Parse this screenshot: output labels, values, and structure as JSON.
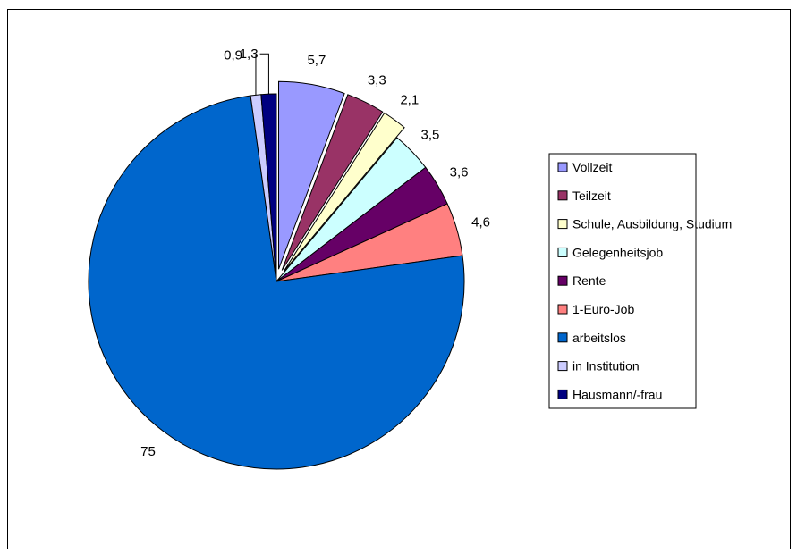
{
  "chart_data": {
    "type": "pie",
    "categories": [
      "Vollzeit",
      "Teilzeit",
      "Schule, Ausbildung, Studium",
      "Gelegenheitsjob",
      "Rente",
      "1-Euro-Job",
      "arbeitslos",
      "in Institution",
      "Hausmann/-frau"
    ],
    "values": [
      5.7,
      3.3,
      2.1,
      3.5,
      3.6,
      4.6,
      75,
      0.9,
      1.3
    ],
    "labels": [
      "5,7",
      "3,3",
      "2,1",
      "3,5",
      "3,6",
      "4,6",
      "75",
      "0,9",
      "1,3"
    ],
    "colors": [
      "#9999FF",
      "#993366",
      "#FFFFCC",
      "#CCFFFF",
      "#660066",
      "#FF8080",
      "#0066CC",
      "#CCCCFF",
      "#000080"
    ],
    "exploded": [
      true,
      true,
      true,
      false,
      false,
      false,
      false,
      false,
      false
    ],
    "legend_position": "right",
    "start_angle": "top",
    "direction": "clockwise"
  }
}
